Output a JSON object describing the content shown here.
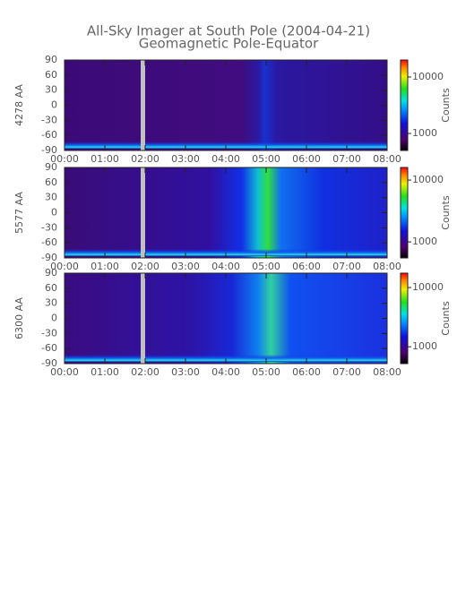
{
  "title": "All-Sky Imager at South Pole (2004-04-21)",
  "subtitle": "Geomagnetic Pole-Equator",
  "chart_data": [
    {
      "type": "heatmap",
      "ylabel": "4278 AA",
      "colorbar_label": "Counts",
      "xlim": [
        0,
        8
      ],
      "xticks": [
        {
          "value": 0,
          "label": "00:00"
        },
        {
          "value": 1,
          "label": "01:00"
        },
        {
          "value": 2,
          "label": "02:00"
        },
        {
          "value": 3,
          "label": "03:00"
        },
        {
          "value": 4,
          "label": "04:00"
        },
        {
          "value": 5,
          "label": "05:00"
        },
        {
          "value": 6,
          "label": "06:00"
        },
        {
          "value": 7,
          "label": "07:00"
        },
        {
          "value": 8,
          "label": "08:00"
        }
      ],
      "ylim": [
        -90,
        90
      ],
      "yticks": [
        90,
        60,
        30,
        0,
        -30,
        -60,
        -90
      ],
      "clim": [
        500,
        20000
      ],
      "cticks": [
        1000,
        10000
      ],
      "color_scale": "log"
    },
    {
      "type": "heatmap",
      "ylabel": "5577 AA",
      "colorbar_label": "Counts",
      "xlim": [
        0,
        8
      ],
      "xticks": [
        {
          "value": 0,
          "label": "00:00"
        },
        {
          "value": 1,
          "label": "01:00"
        },
        {
          "value": 2,
          "label": "02:00"
        },
        {
          "value": 3,
          "label": "03:00"
        },
        {
          "value": 4,
          "label": "04:00"
        },
        {
          "value": 5,
          "label": "05:00"
        },
        {
          "value": 6,
          "label": "06:00"
        },
        {
          "value": 7,
          "label": "07:00"
        },
        {
          "value": 8,
          "label": "08:00"
        }
      ],
      "ylim": [
        -90,
        90
      ],
      "yticks": [
        90,
        60,
        30,
        0,
        -30,
        -60,
        -90
      ],
      "clim": [
        550,
        16000
      ],
      "cticks": [
        1000,
        10000
      ],
      "color_scale": "log"
    },
    {
      "type": "heatmap",
      "ylabel": "6300 AA",
      "colorbar_label": "Counts",
      "xlim": [
        0,
        8
      ],
      "xticks": [
        {
          "value": 0,
          "label": "00:00"
        },
        {
          "value": 1,
          "label": "01:00"
        },
        {
          "value": 2,
          "label": "02:00"
        },
        {
          "value": 3,
          "label": "03:00"
        },
        {
          "value": 4,
          "label": "04:00"
        },
        {
          "value": 5,
          "label": "05:00"
        },
        {
          "value": 6,
          "label": "06:00"
        },
        {
          "value": 7,
          "label": "07:00"
        },
        {
          "value": 8,
          "label": "08:00"
        }
      ],
      "ylim": [
        -90,
        90
      ],
      "yticks": [
        90,
        60,
        30,
        0,
        -30,
        -60,
        -90
      ],
      "clim": [
        520,
        17500
      ],
      "cticks": [
        1000,
        10000
      ],
      "color_scale": "log"
    }
  ]
}
